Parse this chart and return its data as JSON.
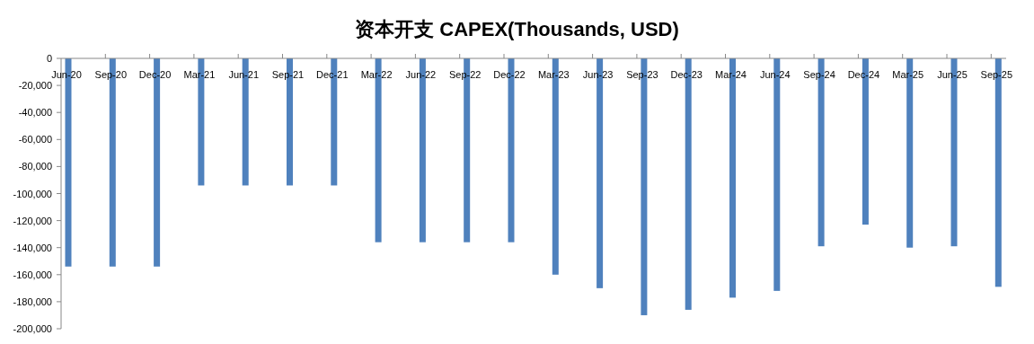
{
  "chart_data": {
    "type": "bar",
    "title": "资本开支 CAPEX(Thousands, USD)",
    "categories": [
      "Jun-20",
      "Sep-20",
      "Dec-20",
      "Mar-21",
      "Jun-21",
      "Sep-21",
      "Dec-21",
      "Mar-22",
      "Jun-22",
      "Sep-22",
      "Dec-22",
      "Mar-23",
      "Jun-23",
      "Sep-23",
      "Dec-23",
      "Mar-24",
      "Jun-24",
      "Sep-24",
      "Dec-24",
      "Mar-25",
      "Jun-25",
      "Sep-25"
    ],
    "values": [
      -154000,
      -154000,
      -154000,
      -94000,
      -94000,
      -94000,
      -94000,
      -136000,
      -136000,
      -136000,
      -136000,
      -160000,
      -170000,
      -190000,
      -186000,
      -177000,
      -172000,
      -139000,
      -123000,
      -140000,
      -139000,
      -169000
    ],
    "color": "#4f81bd",
    "ylim": [
      -200000,
      0
    ],
    "yticks": [
      0,
      {
        "value": -20000,
        "label": "-20,000"
      },
      {
        "value": -40000,
        "label": "-40,000"
      },
      {
        "value": -60000,
        "label": "-60,000"
      },
      {
        "value": -80000,
        "label": "-80,000"
      },
      {
        "value": -100000,
        "label": "-100,000"
      },
      {
        "value": -120000,
        "label": "-120,000"
      },
      {
        "value": -140000,
        "label": "-140,000"
      },
      {
        "value": -160000,
        "label": "-160,000"
      },
      {
        "value": -180000,
        "label": "-180,000"
      },
      {
        "value": -200000,
        "label": "-200,000"
      }
    ]
  }
}
